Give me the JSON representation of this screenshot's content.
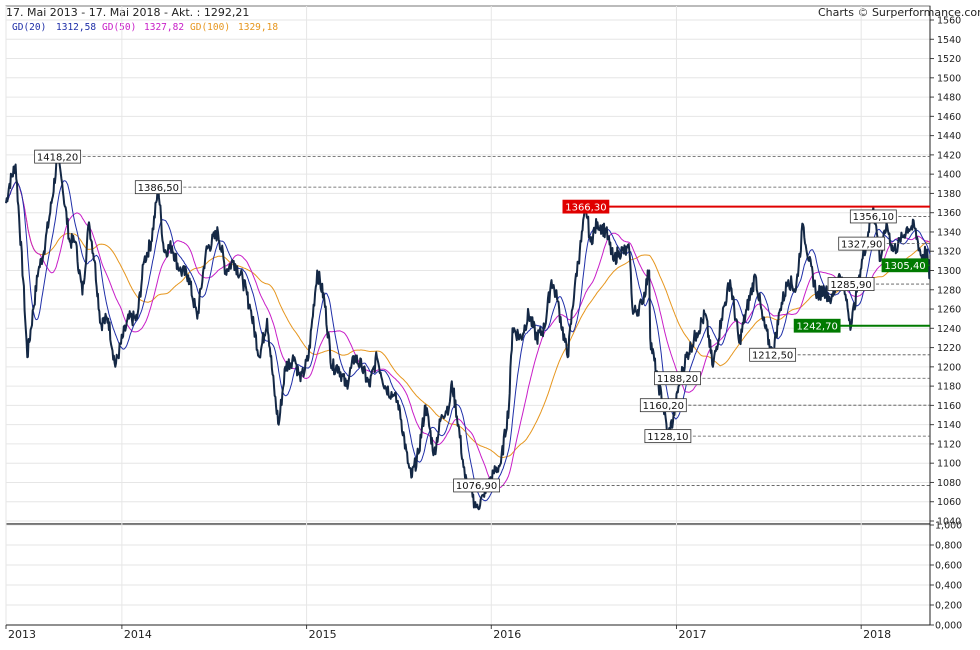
{
  "header": {
    "title": "17. Mai 2013 - 17. Mai 2018 - Akt. : 1292,21",
    "credit": "Charts © Surperformance.com"
  },
  "legend": [
    {
      "label": "GD(20)",
      "value": "1312,58",
      "color": "#1f2fa8"
    },
    {
      "label": "GD(50)",
      "value": "1327,82",
      "color": "#c81ec8"
    },
    {
      "label": "GD(100)",
      "value": "1329,18",
      "color": "#e6961e"
    }
  ],
  "colors": {
    "price": "#142845",
    "gd20": "#1f2fa8",
    "gd50": "#c81ec8",
    "gd100": "#e6961e",
    "resistance": "#e00000",
    "support": "#007a00",
    "grid": "#e6e6e6",
    "level_line": "#555555"
  },
  "chart_data": {
    "type": "line",
    "x_axis": {
      "labels": [
        "2013",
        "2014",
        "2015",
        "2016",
        "2017",
        "2018"
      ],
      "start": "2013-05-17",
      "end": "2018-05-17"
    },
    "y_axis": {
      "min": 1040,
      "max": 1560,
      "step": 20,
      "tick_labels": [
        "1040",
        "1060",
        "1080",
        "1100",
        "1120",
        "1140",
        "1160",
        "1180",
        "1200",
        "1220",
        "1240",
        "1260",
        "1280",
        "1300",
        "1320",
        "1340",
        "1360",
        "1380",
        "1400",
        "1420",
        "1440",
        "1460",
        "1480",
        "1500",
        "1520",
        "1540",
        "1560"
      ]
    },
    "lower_axis": {
      "min": 0,
      "max": 1,
      "tick_labels": [
        "0,000",
        "0,200",
        "0,400",
        "0,600",
        "0,800",
        "1,000"
      ]
    },
    "levels": [
      {
        "value": 1418.2,
        "label": "1418,20",
        "date": "2013-08-27",
        "style": "dashed"
      },
      {
        "value": 1386.5,
        "label": "1386,50",
        "date": "2014-03-14",
        "style": "dashed"
      },
      {
        "value": 1366.3,
        "label": "1366,30",
        "date": "2016-07-06",
        "style": "resistance"
      },
      {
        "value": 1356.1,
        "label": "1356,10",
        "date": "2018-01-25",
        "style": "dashed"
      },
      {
        "value": 1327.9,
        "label": "1327,90",
        "date": "2018-01-02",
        "style": "dashed"
      },
      {
        "value": 1305.4,
        "label": "1305,40",
        "date": "2018-04-16",
        "style": "support-box"
      },
      {
        "value": 1285.9,
        "label": "1285,90",
        "date": "2017-12-12",
        "style": "dashed"
      },
      {
        "value": 1242.7,
        "label": "1242,70",
        "date": "2017-10-06",
        "style": "support"
      },
      {
        "value": 1212.5,
        "label": "1212,50",
        "date": "2017-07-10",
        "style": "dashed"
      },
      {
        "value": 1188.2,
        "label": "1188,20",
        "date": "2017-01-03",
        "style": "dashed"
      },
      {
        "value": 1160.2,
        "label": "1160,20",
        "date": "2016-12-06",
        "style": "dashed"
      },
      {
        "value": 1128.1,
        "label": "1128,10",
        "date": "2016-12-15",
        "style": "dashed"
      },
      {
        "value": 1076.9,
        "label": "1076,90",
        "date": "2015-12-03",
        "style": "dashed"
      }
    ],
    "series": [
      {
        "name": "GD(20)",
        "key": "gd20"
      },
      {
        "name": "GD(50)",
        "key": "gd50"
      },
      {
        "name": "GD(100)",
        "key": "gd100"
      }
    ],
    "price_points": [
      [
        "2013-05-17",
        1370
      ],
      [
        "2013-05-24",
        1390
      ],
      [
        "2013-06-05",
        1410
      ],
      [
        "2013-06-20",
        1290
      ],
      [
        "2013-06-28",
        1210
      ],
      [
        "2013-07-10",
        1260
      ],
      [
        "2013-07-20",
        1300
      ],
      [
        "2013-07-31",
        1320
      ],
      [
        "2013-08-15",
        1370
      ],
      [
        "2013-08-27",
        1418
      ],
      [
        "2013-09-05",
        1390
      ],
      [
        "2013-09-20",
        1330
      ],
      [
        "2013-10-01",
        1330
      ],
      [
        "2013-10-15",
        1275
      ],
      [
        "2013-10-28",
        1350
      ],
      [
        "2013-11-08",
        1310
      ],
      [
        "2013-11-20",
        1245
      ],
      [
        "2013-12-05",
        1250
      ],
      [
        "2013-12-19",
        1200
      ],
      [
        "2014-01-02",
        1230
      ],
      [
        "2014-01-15",
        1250
      ],
      [
        "2014-01-31",
        1250
      ],
      [
        "2014-02-14",
        1310
      ],
      [
        "2014-02-28",
        1330
      ],
      [
        "2014-03-14",
        1386
      ],
      [
        "2014-03-25",
        1320
      ],
      [
        "2014-04-10",
        1325
      ],
      [
        "2014-04-25",
        1300
      ],
      [
        "2014-05-12",
        1295
      ],
      [
        "2014-05-30",
        1250
      ],
      [
        "2014-06-16",
        1320
      ],
      [
        "2014-07-10",
        1340
      ],
      [
        "2014-07-25",
        1300
      ],
      [
        "2014-08-10",
        1310
      ],
      [
        "2014-08-28",
        1290
      ],
      [
        "2014-09-12",
        1260
      ],
      [
        "2014-09-30",
        1210
      ],
      [
        "2014-10-15",
        1250
      ],
      [
        "2014-10-30",
        1170
      ],
      [
        "2014-11-07",
        1140
      ],
      [
        "2014-11-20",
        1200
      ],
      [
        "2014-12-08",
        1210
      ],
      [
        "2014-12-20",
        1185
      ],
      [
        "2015-01-05",
        1210
      ],
      [
        "2015-01-22",
        1300
      ],
      [
        "2015-02-05",
        1270
      ],
      [
        "2015-02-20",
        1200
      ],
      [
        "2015-03-05",
        1200
      ],
      [
        "2015-03-20",
        1180
      ],
      [
        "2015-04-06",
        1210
      ],
      [
        "2015-04-20",
        1200
      ],
      [
        "2015-05-05",
        1180
      ],
      [
        "2015-05-20",
        1210
      ],
      [
        "2015-06-05",
        1180
      ],
      [
        "2015-06-22",
        1170
      ],
      [
        "2015-07-03",
        1160
      ],
      [
        "2015-07-20",
        1100
      ],
      [
        "2015-07-27",
        1085
      ],
      [
        "2015-08-10",
        1110
      ],
      [
        "2015-08-24",
        1160
      ],
      [
        "2015-09-10",
        1110
      ],
      [
        "2015-09-25",
        1150
      ],
      [
        "2015-10-10",
        1160
      ],
      [
        "2015-10-15",
        1185
      ],
      [
        "2015-10-28",
        1140
      ],
      [
        "2015-11-10",
        1085
      ],
      [
        "2015-11-25",
        1065
      ],
      [
        "2015-12-03",
        1055
      ],
      [
        "2015-12-18",
        1065
      ],
      [
        "2016-01-05",
        1090
      ],
      [
        "2016-01-20",
        1100
      ],
      [
        "2016-02-05",
        1160
      ],
      [
        "2016-02-12",
        1240
      ],
      [
        "2016-02-29",
        1230
      ],
      [
        "2016-03-15",
        1255
      ],
      [
        "2016-03-31",
        1230
      ],
      [
        "2016-04-15",
        1240
      ],
      [
        "2016-04-29",
        1290
      ],
      [
        "2016-05-10",
        1270
      ],
      [
        "2016-05-31",
        1210
      ],
      [
        "2016-06-15",
        1290
      ],
      [
        "2016-06-24",
        1320
      ],
      [
        "2016-07-06",
        1366
      ],
      [
        "2016-07-15",
        1330
      ],
      [
        "2016-07-29",
        1350
      ],
      [
        "2016-08-15",
        1340
      ],
      [
        "2016-08-30",
        1310
      ],
      [
        "2016-09-09",
        1320
      ],
      [
        "2016-09-30",
        1320
      ],
      [
        "2016-10-07",
        1255
      ],
      [
        "2016-10-25",
        1265
      ],
      [
        "2016-11-08",
        1300
      ],
      [
        "2016-11-10",
        1230
      ],
      [
        "2016-11-25",
        1185
      ],
      [
        "2016-12-06",
        1160
      ],
      [
        "2016-12-15",
        1128
      ],
      [
        "2016-12-28",
        1150
      ],
      [
        "2017-01-05",
        1180
      ],
      [
        "2017-01-20",
        1210
      ],
      [
        "2017-02-10",
        1235
      ],
      [
        "2017-02-27",
        1255
      ],
      [
        "2017-03-14",
        1200
      ],
      [
        "2017-03-31",
        1250
      ],
      [
        "2017-04-17",
        1290
      ],
      [
        "2017-05-05",
        1225
      ],
      [
        "2017-05-20",
        1260
      ],
      [
        "2017-06-06",
        1295
      ],
      [
        "2017-06-20",
        1250
      ],
      [
        "2017-07-10",
        1212
      ],
      [
        "2017-07-25",
        1260
      ],
      [
        "2017-08-10",
        1290
      ],
      [
        "2017-08-25",
        1280
      ],
      [
        "2017-09-08",
        1348
      ],
      [
        "2017-09-20",
        1310
      ],
      [
        "2017-10-06",
        1275
      ],
      [
        "2017-10-20",
        1280
      ],
      [
        "2017-11-03",
        1270
      ],
      [
        "2017-11-20",
        1295
      ],
      [
        "2017-12-01",
        1275
      ],
      [
        "2017-12-12",
        1242
      ],
      [
        "2017-12-28",
        1295
      ],
      [
        "2018-01-15",
        1340
      ],
      [
        "2018-01-25",
        1366
      ],
      [
        "2018-02-08",
        1310
      ],
      [
        "2018-02-20",
        1350
      ],
      [
        "2018-03-05",
        1320
      ],
      [
        "2018-03-20",
        1330
      ],
      [
        "2018-04-02",
        1345
      ],
      [
        "2018-04-16",
        1345
      ],
      [
        "2018-04-30",
        1315
      ],
      [
        "2018-05-10",
        1320
      ],
      [
        "2018-05-17",
        1292
      ]
    ]
  }
}
